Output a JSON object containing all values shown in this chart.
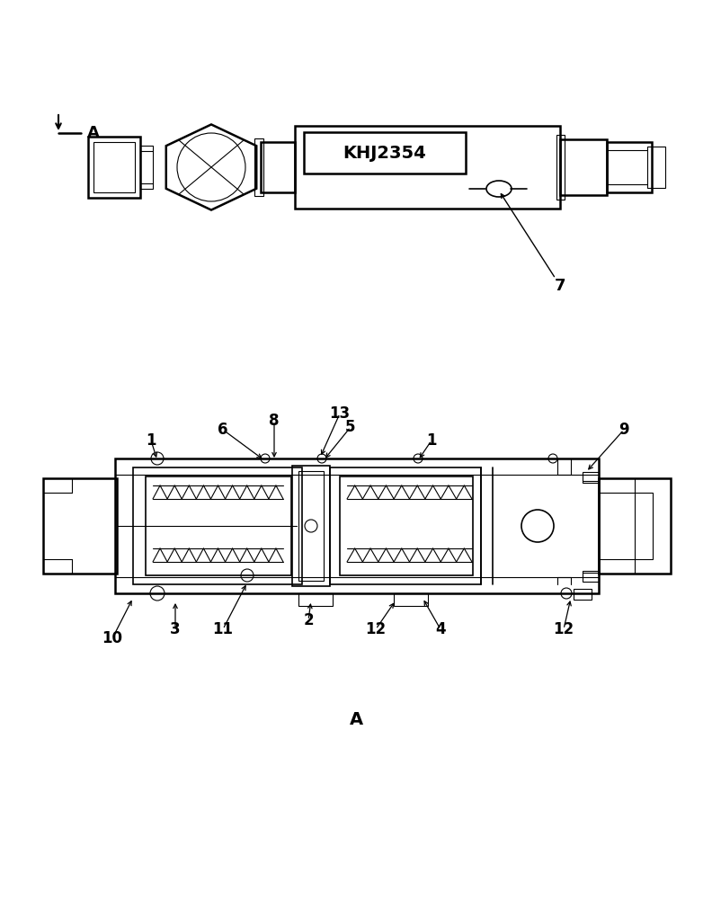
{
  "bg_color": "#ffffff",
  "line_color": "#000000",
  "fig_width": 7.92,
  "fig_height": 10.0,
  "part_label": "KHJ2354"
}
